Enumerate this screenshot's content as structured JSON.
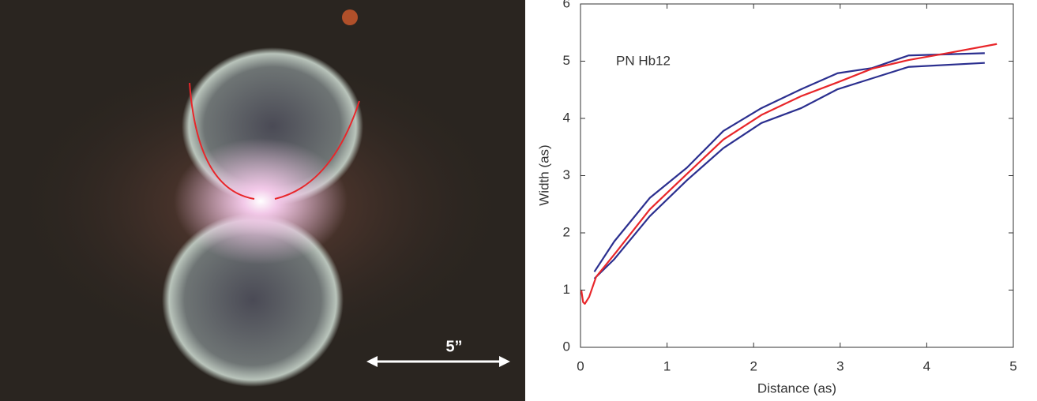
{
  "image_panel": {
    "scale_label": "5”"
  },
  "chart_data": {
    "type": "line",
    "annotation": "PN Hb12",
    "xlabel": "Distance (as)",
    "ylabel": "Width (as)",
    "xlim": [
      0,
      5
    ],
    "ylim": [
      0,
      6
    ],
    "xticks": [
      0,
      1,
      2,
      3,
      4,
      5
    ],
    "yticks": [
      0,
      1,
      2,
      3,
      4,
      5,
      6
    ],
    "grid": false,
    "series": [
      {
        "color": "#2b2f8f",
        "x": [
          0.16,
          0.39,
          0.8,
          1.23,
          1.65,
          2.09,
          2.55,
          2.97,
          3.37,
          3.79,
          4.67
        ],
        "values": [
          1.32,
          1.85,
          2.61,
          3.14,
          3.78,
          4.18,
          4.51,
          4.79,
          4.88,
          5.1,
          5.14
        ]
      },
      {
        "color": "#2b2f8f",
        "x": [
          0.16,
          0.39,
          0.8,
          1.23,
          1.65,
          2.09,
          2.55,
          2.97,
          3.37,
          3.79,
          4.67
        ],
        "values": [
          1.2,
          1.54,
          2.29,
          2.92,
          3.48,
          3.92,
          4.18,
          4.51,
          4.7,
          4.9,
          4.97
        ]
      },
      {
        "color": "#e8262a",
        "x": [
          0.01,
          0.03,
          0.05,
          0.1,
          0.18,
          0.41,
          0.8,
          1.23,
          1.65,
          2.09,
          2.55,
          2.97,
          3.37,
          3.79,
          4.24,
          4.81
        ],
        "values": [
          0.99,
          0.79,
          0.76,
          0.88,
          1.23,
          1.66,
          2.41,
          3.03,
          3.63,
          4.06,
          4.39,
          4.63,
          4.87,
          5.02,
          5.14,
          5.3
        ]
      }
    ]
  }
}
